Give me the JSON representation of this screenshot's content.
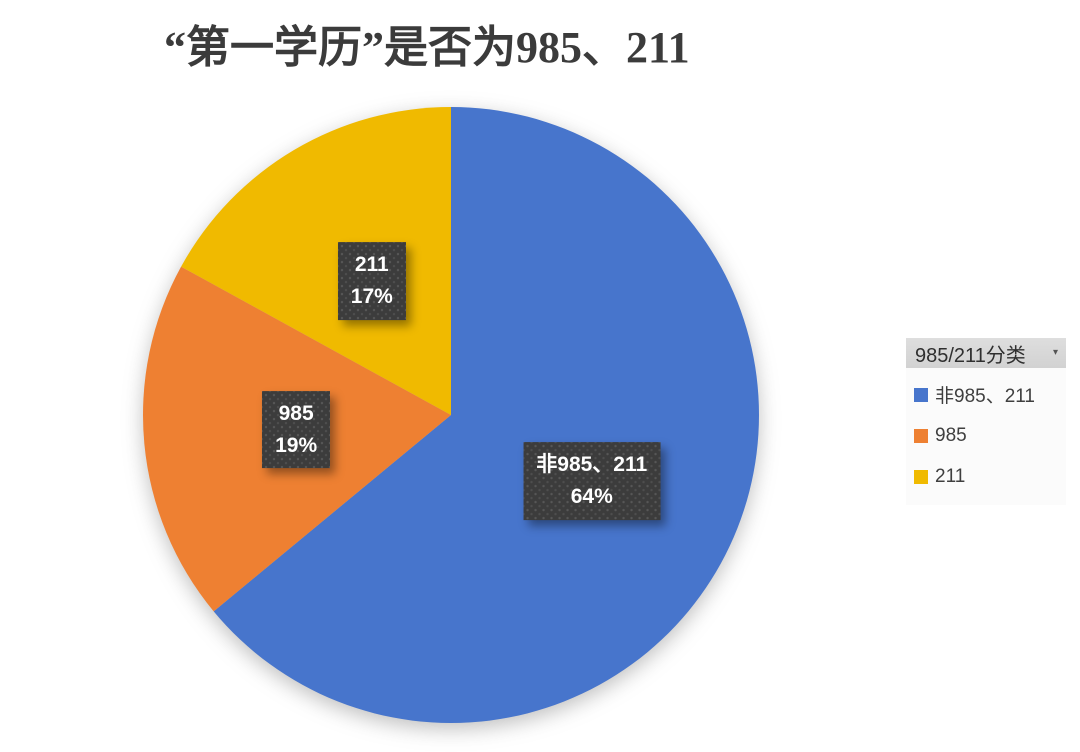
{
  "title": "“第一学历”是否为985、211",
  "background_color": "#ffffff",
  "chart_data": {
    "type": "pie",
    "title": "“第一学历”是否为985、211",
    "start_angle_deg": 0,
    "direction": "clockwise",
    "legend_position": "right",
    "slices": [
      {
        "id": "non-985-211",
        "label": "非985、211",
        "value": 64,
        "unit": "%",
        "color": "#4775CC",
        "data_label_lines": [
          "非985、211",
          "64%"
        ]
      },
      {
        "id": "985",
        "label": "985",
        "value": 19,
        "unit": "%",
        "color": "#EE8032",
        "data_label_lines": [
          "985",
          "19%"
        ]
      },
      {
        "id": "211",
        "label": "211",
        "value": 17,
        "unit": "%",
        "color": "#F0BA00",
        "data_label_lines": [
          "211",
          "17%"
        ]
      }
    ],
    "data_label_style": {
      "background": "#3c3c3c",
      "text_color": "#ffffff"
    }
  },
  "legend": {
    "header": "985/211分类",
    "dropdown_icon": "▾",
    "items": [
      {
        "label": "非985、211",
        "color": "#4775CC"
      },
      {
        "label": "985",
        "color": "#EE8032"
      },
      {
        "label": "211",
        "color": "#F0BA00"
      }
    ]
  }
}
